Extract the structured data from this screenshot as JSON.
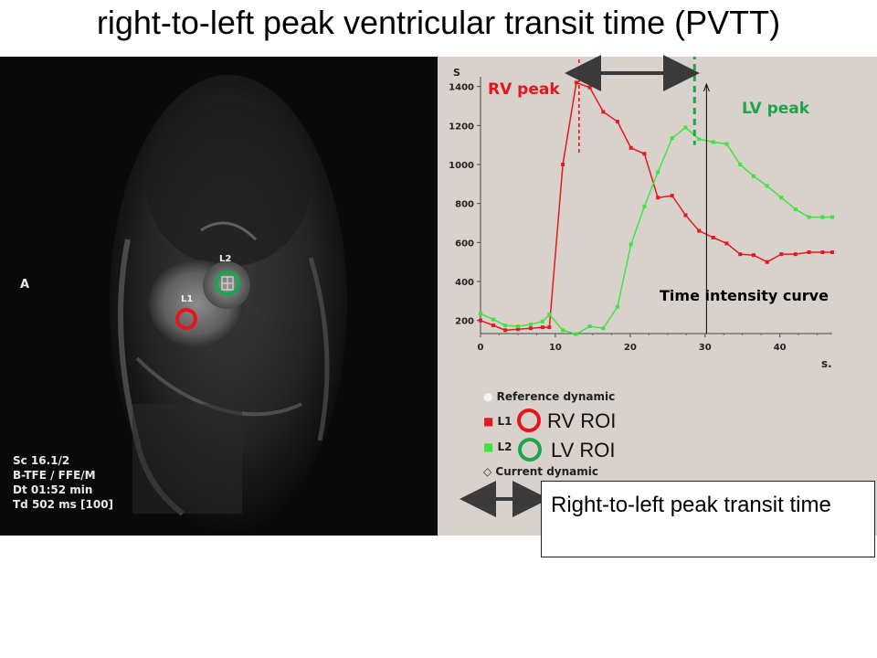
{
  "title": "right-to-left peak ventricular transit time (PVTT)",
  "mri": {
    "orientation_label": "A",
    "info_lines": [
      "Sc 16.1/2",
      "B-TFE / FFE/M",
      "Dt 01:52 min",
      "Td 502 ms [100]"
    ],
    "roi_tags": [
      "L1",
      "L2"
    ],
    "roi_colors": {
      "rv": "#e8141c",
      "lv": "#1aa64a"
    }
  },
  "annotations": {
    "rv_peak": "RV peak",
    "lv_peak": "LV peak",
    "curve_label": "Time intensity curve",
    "y_unit": "S",
    "x_unit": "s.",
    "cutoff_header": "“”””, ”“““."
  },
  "legend": {
    "reference": "Reference dynamic",
    "l1": "L1",
    "l2": "L2",
    "current": "Current dynamic",
    "rv_roi": "RV ROI",
    "lv_roi": "LV ROI"
  },
  "note_box": "Right-to-left peak transit time",
  "chart_data": {
    "type": "line",
    "title": "Time intensity curve",
    "xlabel": "s.",
    "ylabel": "S",
    "xlim": [
      0,
      47
    ],
    "ylim": [
      100,
      1450
    ],
    "x_ticks": [
      0,
      10,
      20,
      30,
      40
    ],
    "y_ticks": [
      200,
      400,
      600,
      800,
      1000,
      1200,
      1400
    ],
    "series": [
      {
        "name": "L1",
        "color": "#e3191e",
        "x": [
          0,
          1.7,
          3.3,
          5,
          6.7,
          8.3,
          9.2,
          11,
          12.8,
          14.6,
          16.4,
          18.3,
          20.1,
          21.9,
          23.7,
          25.6,
          27.4,
          29.2,
          31.1,
          32.9,
          34.7,
          36.5,
          38.3,
          40.2,
          42.1,
          43.9,
          45.7,
          47
        ],
        "values": [
          200,
          175,
          150,
          155,
          160,
          165,
          165,
          1000,
          1420,
          1395,
          1270,
          1220,
          1085,
          1055,
          830,
          840,
          740,
          660,
          625,
          595,
          540,
          535,
          500,
          540,
          540,
          550,
          550,
          550
        ]
      },
      {
        "name": "L2",
        "color": "#3fe43f",
        "x": [
          0,
          1.7,
          3.3,
          5,
          6.7,
          8.3,
          9.2,
          11,
          12.8,
          14.6,
          16.4,
          18.3,
          20.1,
          21.9,
          23.7,
          25.6,
          27.4,
          29.2,
          31.1,
          32.9,
          34.7,
          36.5,
          38.3,
          40.2,
          42.1,
          43.9,
          45.7,
          47
        ],
        "values": [
          235,
          205,
          175,
          170,
          180,
          195,
          230,
          150,
          130,
          170,
          160,
          270,
          590,
          785,
          960,
          1135,
          1190,
          1130,
          1115,
          1105,
          1000,
          940,
          890,
          830,
          770,
          730,
          730,
          730
        ]
      }
    ],
    "markers": {
      "rv_peak_x": 12.8,
      "lv_peak_x": 28.6,
      "current_dynamic_x": 30.2
    }
  }
}
